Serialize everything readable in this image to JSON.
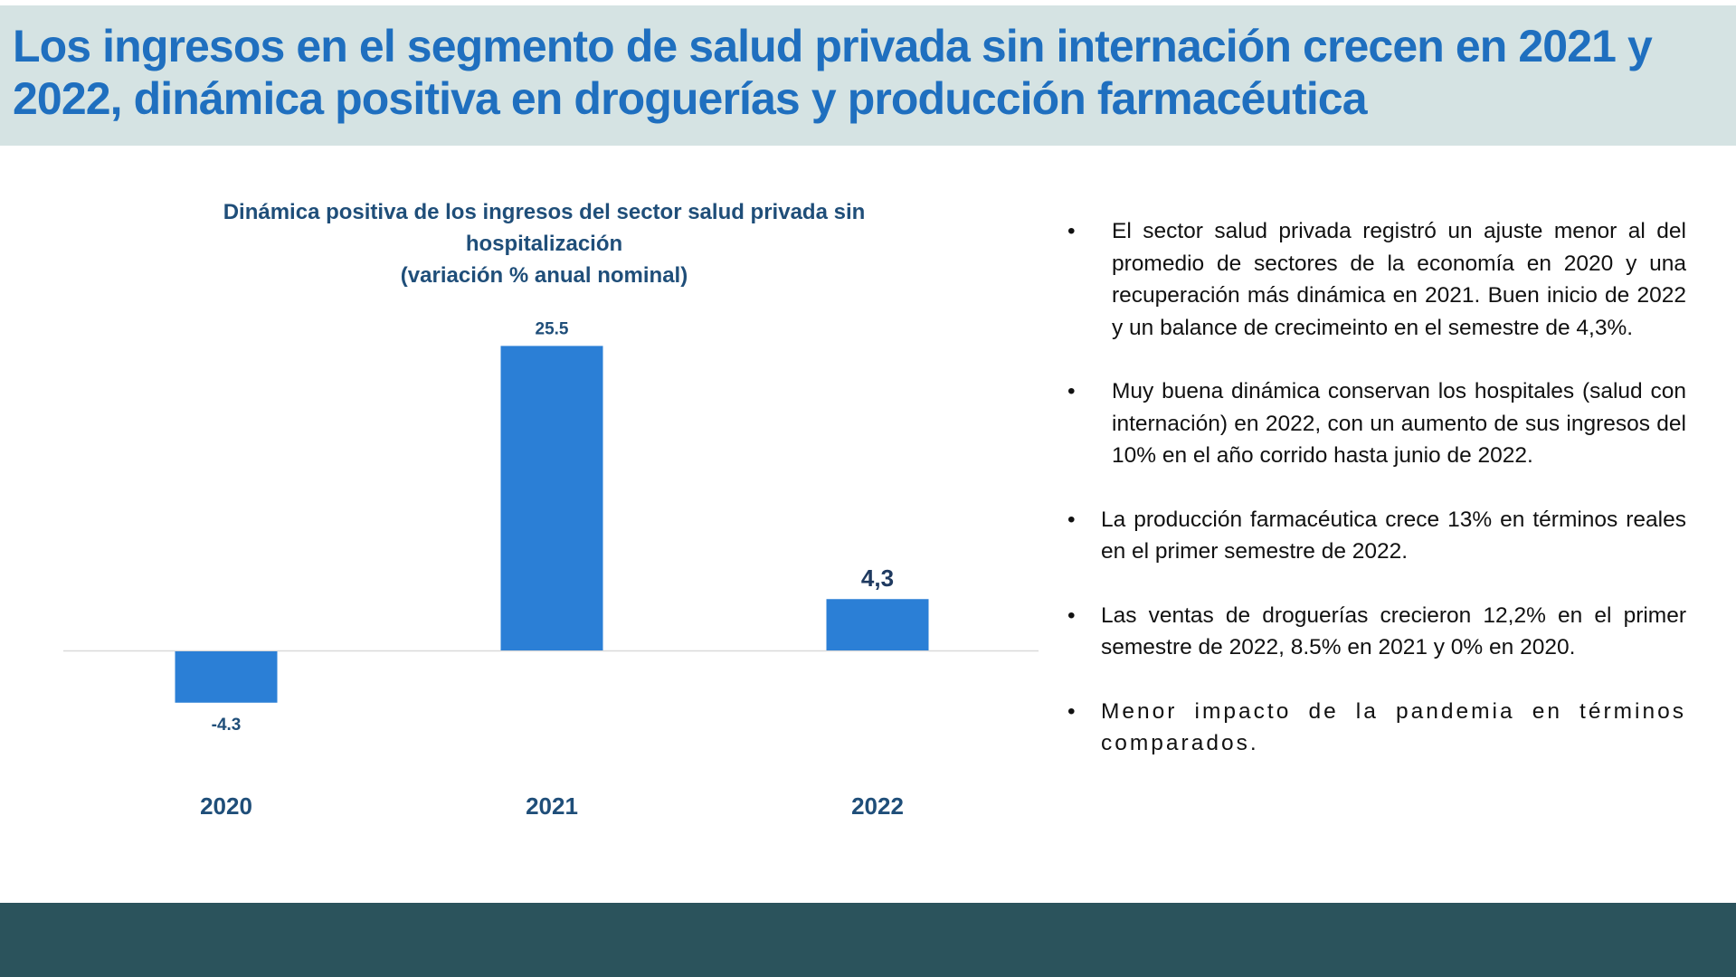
{
  "slide": {
    "title": "Los ingresos en el segmento de salud privada sin internación crecen en 2021 y 2022, dinámica positiva en droguerías y producción farmacéutica"
  },
  "chart_data": {
    "type": "bar",
    "title_lines": [
      "Dinámica positiva de los ingresos del sector salud privada sin",
      "hospitalización",
      "(variación % anual nominal)"
    ],
    "categories": [
      "2020",
      "2021",
      "2022"
    ],
    "values": [
      -4.3,
      25.5,
      4.3
    ],
    "data_labels": [
      "-4.3",
      "25.5",
      "4,3"
    ],
    "xlabel": "",
    "ylabel": "",
    "grid": false,
    "legend": "none",
    "colors": {
      "bar": "#2b7fd6",
      "axis": "#d9d9d9",
      "label": "#1f4e79",
      "category": "#1f4e79",
      "highlight_label": "#1f3a60"
    }
  },
  "bullets": [
    "El sector salud privada registró un ajuste menor al del promedio de sectores de la economía en 2020 y una recuperación más dinámica en 2021. Buen inicio de 2022 y un balance de crecimeinto en el semestre de 4,3%.",
    "Muy buena dinámica conservan los hospitales (salud con internación) en 2022, con un aumento de sus ingresos del 10% en el año corrido hasta junio de 2022.",
    "La producción farmacéutica crece 13% en términos reales en el primer semestre de 2022.",
    "Las ventas de droguerías crecieron 12,2% en el primer semestre de 2022, 8.5% en 2021 y 0% en 2020.",
    "Menor impacto de la pandemia en términos comparados."
  ],
  "bullet_symbol": "•",
  "colors": {
    "title": "#1f6fbf",
    "title_band": "#d5e3e3",
    "footer": "#2b535c"
  }
}
